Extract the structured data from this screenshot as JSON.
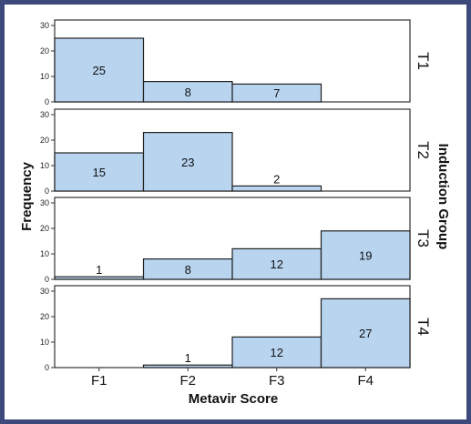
{
  "chart_data": {
    "type": "bar",
    "categories": [
      "F1",
      "F2",
      "F3",
      "F4"
    ],
    "xlabel": "Metavir Score",
    "ylabel": "Frequency",
    "panel_group_label": "Induction Group",
    "ylim": [
      0,
      30
    ],
    "yticks": [
      0,
      10,
      20,
      30
    ],
    "bar_color": "#b8d4ef",
    "panels": [
      {
        "name": "T1",
        "values": [
          25,
          8,
          7,
          0
        ],
        "labels": [
          "25",
          "8",
          "7",
          ""
        ]
      },
      {
        "name": "T2",
        "values": [
          15,
          23,
          2,
          0
        ],
        "labels": [
          "15",
          "23",
          "2",
          ""
        ]
      },
      {
        "name": "T3",
        "values": [
          1,
          8,
          12,
          19
        ],
        "labels": [
          "1",
          "8",
          "12",
          "19"
        ]
      },
      {
        "name": "T4",
        "values": [
          0,
          1,
          12,
          27
        ],
        "labels": [
          "",
          "1",
          "12",
          "27"
        ]
      }
    ]
  }
}
